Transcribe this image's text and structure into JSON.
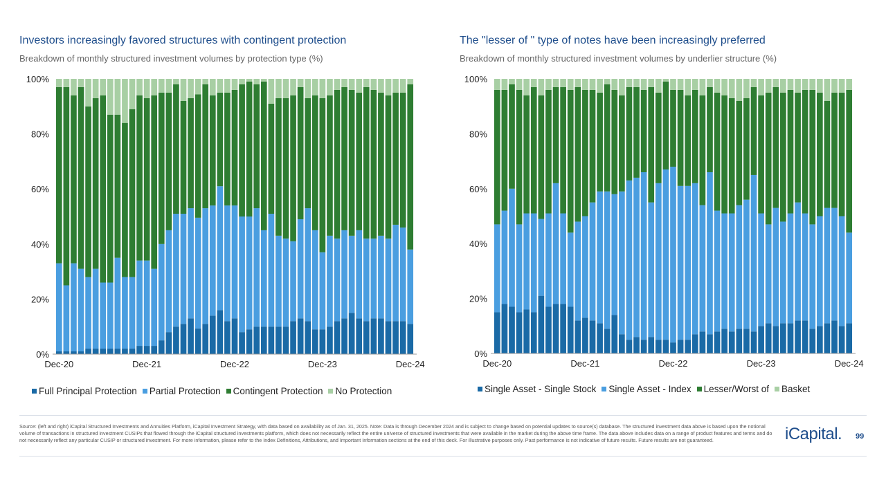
{
  "charts": [
    {
      "type": "stacked-bar",
      "title": "Investors increasingly favored structures with contingent protection",
      "subtitle": "Breakdown of monthly structured investment volumes by protection type (%)",
      "ylim": [
        0,
        100
      ],
      "y_ticks": [
        "0%",
        "20%",
        "40%",
        "60%",
        "80%",
        "100%"
      ],
      "x_tick_labels": [
        "Dec-20",
        "Dec-21",
        "Dec-22",
        "Dec-23",
        "Dec-24"
      ],
      "x_tick_index": [
        0,
        12,
        24,
        36,
        48
      ],
      "categories": [
        "Dec-20",
        "Jan-21",
        "Feb-21",
        "Mar-21",
        "Apr-21",
        "May-21",
        "Jun-21",
        "Jul-21",
        "Aug-21",
        "Sep-21",
        "Oct-21",
        "Nov-21",
        "Dec-21",
        "Jan-22",
        "Feb-22",
        "Mar-22",
        "Apr-22",
        "May-22",
        "Jun-22",
        "Jul-22",
        "Aug-22",
        "Sep-22",
        "Oct-22",
        "Nov-22",
        "Dec-22",
        "Jan-23",
        "Feb-23",
        "Mar-23",
        "Apr-23",
        "May-23",
        "Jun-23",
        "Jul-23",
        "Aug-23",
        "Sep-23",
        "Oct-23",
        "Nov-23",
        "Dec-23",
        "Jan-24",
        "Feb-24",
        "Mar-24",
        "Apr-24",
        "May-24",
        "Jun-24",
        "Jul-24",
        "Aug-24",
        "Sep-24",
        "Oct-24",
        "Nov-24",
        "Dec-24"
      ],
      "series": [
        {
          "name": "Full Principal Protection",
          "color": "#1a6aa6",
          "values": [
            1,
            1,
            1,
            1,
            2,
            2,
            2,
            2,
            2,
            2,
            2,
            3,
            3,
            3,
            5,
            8,
            10,
            11,
            13,
            10,
            11,
            14,
            16,
            12,
            13,
            8,
            9,
            10,
            10,
            10,
            10,
            10,
            12,
            13,
            12,
            9,
            9,
            10,
            12,
            13,
            15,
            13,
            12,
            13,
            13,
            12,
            12,
            12,
            11
          ]
        },
        {
          "name": "Partial Protection",
          "color": "#4a9ee0",
          "values": [
            32,
            24,
            32,
            30,
            26,
            29,
            24,
            24,
            33,
            26,
            26,
            31,
            31,
            28,
            35,
            37,
            41,
            40,
            40,
            43,
            42,
            40,
            45,
            42,
            41,
            42,
            41,
            43,
            35,
            41,
            33,
            32,
            29,
            36,
            41,
            36,
            28,
            33,
            30,
            32,
            28,
            32,
            30,
            29,
            30,
            30,
            35,
            34,
            27
          ]
        },
        {
          "name": "Contingent Protection",
          "color": "#2e7d32",
          "values": [
            64,
            72,
            61,
            66,
            62,
            62,
            68,
            61,
            52,
            56,
            61,
            60,
            59,
            63,
            55,
            50,
            47,
            41,
            40,
            48,
            45,
            40,
            34,
            41,
            42,
            48,
            49,
            45,
            54,
            40,
            50,
            51,
            53,
            48,
            40,
            49,
            56,
            51,
            54,
            52,
            53,
            50,
            55,
            54,
            52,
            52,
            48,
            49,
            60
          ]
        },
        {
          "name": "No Protection",
          "color": "#a8cfa4",
          "values": [
            3,
            3,
            6,
            3,
            10,
            7,
            6,
            13,
            13,
            16,
            11,
            6,
            7,
            6,
            5,
            5,
            2,
            8,
            7,
            6,
            2,
            6,
            5,
            5,
            4,
            2,
            1,
            2,
            1,
            9,
            7,
            7,
            6,
            3,
            7,
            6,
            7,
            6,
            4,
            3,
            4,
            5,
            3,
            4,
            5,
            6,
            5,
            5,
            2
          ]
        }
      ]
    },
    {
      "type": "stacked-bar",
      "title": "The \"lesser of \" type of notes have been increasingly preferred",
      "subtitle": "Breakdown of monthly structured investment volumes by underlier structure (%)",
      "ylim": [
        0,
        100
      ],
      "y_ticks": [
        "0%",
        "20%",
        "40%",
        "60%",
        "80%",
        "100%"
      ],
      "x_tick_labels": [
        "Dec-20",
        "Dec-21",
        "Dec-22",
        "Dec-23",
        "Dec-24"
      ],
      "x_tick_index": [
        0,
        12,
        24,
        36,
        48
      ],
      "categories": [
        "Dec-20",
        "Jan-21",
        "Feb-21",
        "Mar-21",
        "Apr-21",
        "May-21",
        "Jun-21",
        "Jul-21",
        "Aug-21",
        "Sep-21",
        "Oct-21",
        "Nov-21",
        "Dec-21",
        "Jan-22",
        "Feb-22",
        "Mar-22",
        "Apr-22",
        "May-22",
        "Jun-22",
        "Jul-22",
        "Aug-22",
        "Sep-22",
        "Oct-22",
        "Nov-22",
        "Dec-22",
        "Jan-23",
        "Feb-23",
        "Mar-23",
        "Apr-23",
        "May-23",
        "Jun-23",
        "Jul-23",
        "Aug-23",
        "Sep-23",
        "Oct-23",
        "Nov-23",
        "Dec-23",
        "Jan-24",
        "Feb-24",
        "Mar-24",
        "Apr-24",
        "May-24",
        "Jun-24",
        "Jul-24",
        "Aug-24",
        "Sep-24",
        "Oct-24",
        "Nov-24",
        "Dec-24"
      ],
      "series": [
        {
          "name": "Single Asset - Single Stock",
          "color": "#1a6aa6",
          "values": [
            15,
            18,
            17,
            15,
            16,
            15,
            21,
            17,
            18,
            18,
            17,
            12,
            13,
            12,
            11,
            9,
            14,
            7,
            5,
            6,
            5,
            6,
            5,
            5,
            4,
            5,
            5,
            7,
            8,
            7,
            8,
            9,
            8,
            9,
            9,
            8,
            10,
            11,
            10,
            11,
            11,
            12,
            12,
            9,
            10,
            11,
            12,
            10,
            11
          ]
        },
        {
          "name": "Single Asset - Index",
          "color": "#4a9ee0",
          "values": [
            32,
            34,
            43,
            32,
            35,
            36,
            28,
            34,
            44,
            33,
            27,
            36,
            37,
            43,
            48,
            50,
            44,
            52,
            58,
            58,
            61,
            49,
            57,
            62,
            64,
            56,
            56,
            55,
            46,
            59,
            44,
            42,
            43,
            45,
            47,
            57,
            41,
            36,
            43,
            37,
            40,
            43,
            39,
            38,
            40,
            42,
            41,
            40,
            33
          ]
        },
        {
          "name": "Lesser/Worst of",
          "color": "#2e7d32",
          "values": [
            49,
            44,
            38,
            49,
            43,
            46,
            45,
            45,
            35,
            46,
            52,
            49,
            46,
            41,
            36,
            39,
            38,
            35,
            34,
            33,
            30,
            42,
            33,
            32,
            28,
            35,
            33,
            34,
            40,
            31,
            43,
            43,
            42,
            38,
            37,
            32,
            43,
            48,
            44,
            47,
            45,
            40,
            45,
            49,
            45,
            39,
            42,
            45,
            52
          ]
        },
        {
          "name": "Basket",
          "color": "#a8cfa4",
          "values": [
            4,
            4,
            2,
            4,
            6,
            3,
            6,
            4,
            3,
            3,
            4,
            3,
            4,
            4,
            5,
            2,
            4,
            6,
            3,
            3,
            4,
            3,
            5,
            1,
            4,
            4,
            6,
            4,
            6,
            3,
            5,
            6,
            7,
            8,
            7,
            3,
            6,
            5,
            3,
            5,
            4,
            5,
            4,
            4,
            5,
            8,
            5,
            5,
            4
          ]
        }
      ]
    }
  ],
  "footer": {
    "source": "Source: (left and right) iCapital Structured Investments and Annuities Platform, iCapital Investment Strategy, with data based on availability as of Jan. 31, 2025. Note: Data is through December 2024 and is subject to change based on potential updates to source(s) database. The structured investment data above is based upon the notional volume of transactions in structured investment CUSIPs that flowed through the iCapital structured investments platform, which does not necessarily reflect the entire universe of structured investments that were available in the market during the above time frame. The data above includes data on a range of product features and terms and do not necessarily reflect any particular CUSIP or structured investment. For more information, please refer to the Index Definitions, Attributions, and Important Information sections at the end of this deck. For illustrative purposes only. Past performance is not indicative of future results. Future results are not guaranteed.",
    "logo": "iCapital.",
    "page_number": "99"
  },
  "chart_data": [
    {
      "type": "bar",
      "stacked": true,
      "title": "Investors increasingly favored structures with contingent protection",
      "ylabel": "Breakdown of monthly structured investment volumes by protection type (%)",
      "ylim": [
        0,
        100
      ],
      "series_names": [
        "Full Principal Protection",
        "Partial Protection",
        "Contingent Protection",
        "No Protection"
      ]
    },
    {
      "type": "bar",
      "stacked": true,
      "title": "The \"lesser of \" type of notes have been increasingly preferred",
      "ylabel": "Breakdown of monthly structured investment volumes by underlier structure (%)",
      "ylim": [
        0,
        100
      ],
      "series_names": [
        "Single Asset - Single Stock",
        "Single Asset - Index",
        "Lesser/Worst of",
        "Basket"
      ]
    }
  ]
}
